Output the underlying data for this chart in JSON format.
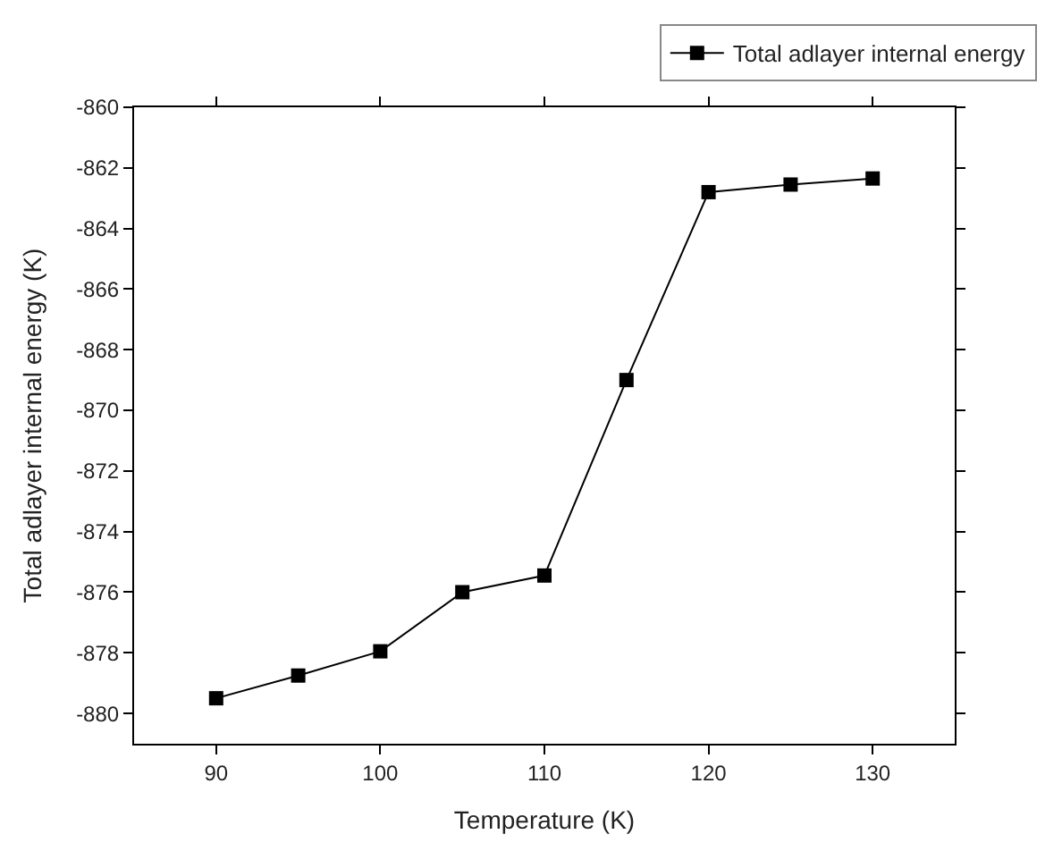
{
  "chart_data": {
    "type": "line",
    "xlabel": "Temperature (K)",
    "ylabel": "Total adlayer internal energy (K)",
    "x": [
      90,
      95,
      100,
      105,
      110,
      115,
      120,
      125,
      130
    ],
    "series": [
      {
        "name": "Total adlayer internal energy",
        "color": "#000000",
        "values": [
          -879.5,
          -878.75,
          -877.95,
          -876.0,
          -875.45,
          -869.0,
          -862.8,
          -862.55,
          -862.35
        ]
      }
    ],
    "xlim": [
      85,
      135
    ],
    "xticks": [
      90,
      100,
      110,
      120,
      130
    ],
    "ylim": [
      -881,
      -860
    ],
    "yticks": [
      -880,
      -878,
      -876,
      -874,
      -872,
      -870,
      -868,
      -866,
      -864,
      -862,
      -860
    ],
    "legend": "top right",
    "marker": "square",
    "line_style": "solid"
  }
}
